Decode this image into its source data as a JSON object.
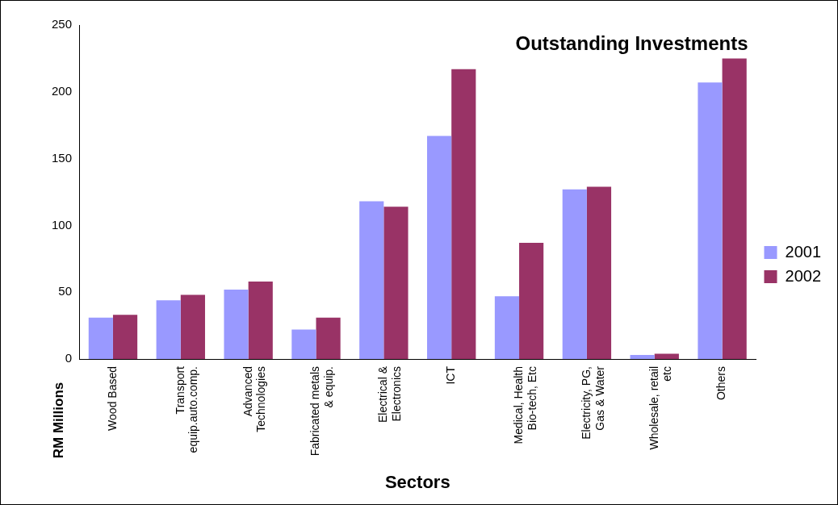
{
  "chart_data": {
    "type": "bar",
    "title": "Outstanding Investments",
    "xlabel": "Sectors",
    "ylabel": "RM Millions",
    "categories": [
      "Wood Based",
      "Transport\nequip.auto.comp.",
      "Advanced\nTechnologies",
      "Fabricated metals\n& equip.",
      "Electrical &\nElectronics",
      "ICT",
      "Medical, Health\nBio-tech, Etc",
      "Electricity, PG,\nGas & Water",
      "Wholesale, retail\netc",
      "Others"
    ],
    "series": [
      {
        "name": "2001",
        "color": "#9999ff",
        "values": [
          31,
          44,
          52,
          22,
          118,
          167,
          47,
          127,
          3,
          207
        ]
      },
      {
        "name": "2002",
        "color": "#993366",
        "values": [
          33,
          48,
          58,
          31,
          114,
          217,
          87,
          129,
          4,
          225
        ]
      }
    ],
    "ylim": [
      0,
      250
    ],
    "yticks": [
      0,
      50,
      100,
      150,
      200,
      250
    ],
    "grid": false,
    "legend": "right"
  }
}
